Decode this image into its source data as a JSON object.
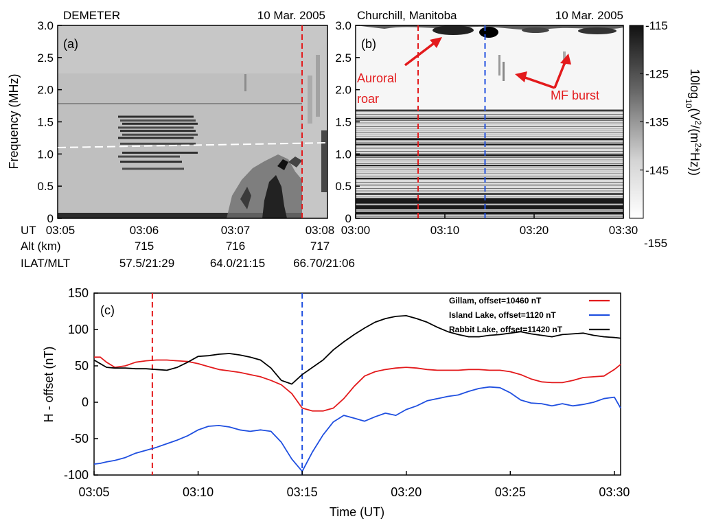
{
  "panel_a": {
    "instrument": "DEMETER",
    "date": "10 Mar. 2005",
    "letter": "(a)",
    "ylabel": "Frequency (MHz)",
    "yticks": [
      "0",
      "0.5",
      "1.0",
      "1.5",
      "2.0",
      "2.5",
      "3.0"
    ],
    "ytick_values": [
      0,
      0.5,
      1.0,
      1.5,
      2.0,
      2.5,
      3.0
    ],
    "ylim": [
      0,
      3.0
    ],
    "xlim_minutes": [
      3.083,
      3.133
    ],
    "rows": [
      {
        "label": "UT",
        "values": [
          "03:05",
          "03:06",
          "03:07",
          "03:08"
        ]
      },
      {
        "label": "Alt (km)",
        "values": [
          "715",
          "716",
          "717"
        ]
      },
      {
        "label": "ILAT/MLT",
        "values": [
          "57.5/21:29",
          "64.0/21:15",
          "66.70/21:06"
        ]
      }
    ],
    "marker_time": "03:07:50",
    "marker_color": "#e31a1c",
    "dashed_line_start_mhz": 1.1,
    "dashed_line_end_mhz": 1.17
  },
  "panel_b": {
    "location": "Churchill, Manitoba",
    "date": "10 Mar. 2005",
    "letter": "(b)",
    "yticks": [
      "0",
      "0.5",
      "1.0",
      "1.5",
      "2.0",
      "2.5",
      "3.0"
    ],
    "xticks": [
      "03:00",
      "03:10",
      "03:20",
      "03:30"
    ],
    "xtick_values_min": [
      0,
      10,
      20,
      30
    ],
    "xlim_min": [
      0,
      30
    ],
    "ylim": [
      0,
      3.0
    ],
    "red_marker_min": 7,
    "blue_marker_min": 14.5,
    "annotations": [
      {
        "text": "Auroral",
        "color": "#e31a1c"
      },
      {
        "text": "roar",
        "color": "#e31a1c"
      },
      {
        "text": "MF burst",
        "color": "#e31a1c"
      }
    ],
    "colorbar": {
      "label_base": "10log",
      "label_sub": "10",
      "label_mid": "(V",
      "label_sup": "2",
      "label_mid2": "/(m",
      "label_sup2": "2",
      "label_end": "*Hz))",
      "ticks": [
        "-115",
        "-125",
        "-135",
        "-145",
        "-155"
      ],
      "tick_values": [
        -115,
        -125,
        -135,
        -145,
        -155
      ],
      "range": [
        -155,
        -115
      ],
      "colormap": "gray-reversed"
    }
  },
  "chart_data": {
    "type": "line",
    "title": "",
    "panel_letter": "(c)",
    "xlabel": "Time (UT)",
    "ylabel": "H - offset (nT)",
    "xticks": [
      "03:05",
      "03:10",
      "03:15",
      "03:20",
      "03:25",
      "03:30"
    ],
    "xtick_values": [
      5,
      10,
      15,
      20,
      25,
      30
    ],
    "xlim": [
      5,
      30.3
    ],
    "yticks": [
      "-100",
      "-50",
      "0",
      "50",
      "100",
      "150"
    ],
    "ytick_values": [
      -100,
      -50,
      0,
      50,
      100,
      150
    ],
    "ylim": [
      -100,
      150
    ],
    "grid": false,
    "legend_position": "top-right",
    "markers": [
      {
        "x": 7.8,
        "color": "#e31a1c"
      },
      {
        "x": 15.0,
        "color": "#1f4fe0"
      }
    ],
    "x": [
      5.0,
      5.3,
      5.6,
      6.0,
      6.5,
      7.0,
      7.5,
      8.0,
      8.5,
      9.0,
      9.5,
      10.0,
      10.5,
      11.0,
      11.5,
      12.0,
      12.5,
      13.0,
      13.5,
      14.0,
      14.5,
      15.0,
      15.5,
      16.0,
      16.5,
      17.0,
      17.5,
      18.0,
      18.5,
      19.0,
      19.5,
      20.0,
      20.5,
      21.0,
      21.5,
      22.0,
      22.5,
      23.0,
      23.5,
      24.0,
      24.5,
      25.0,
      25.5,
      26.0,
      26.5,
      27.0,
      27.5,
      28.0,
      28.5,
      29.0,
      29.5,
      30.0,
      30.3
    ],
    "series": [
      {
        "name": "Gillam, offset=10460 nT",
        "color": "#e31a1c",
        "values": [
          62,
          62,
          55,
          48,
          50,
          55,
          57,
          58,
          58,
          57,
          56,
          53,
          49,
          45,
          43,
          41,
          38,
          35,
          30,
          24,
          12,
          -8,
          -12,
          -12,
          -8,
          5,
          22,
          36,
          42,
          45,
          47,
          48,
          47,
          45,
          44,
          44,
          44,
          45,
          45,
          44,
          44,
          42,
          38,
          32,
          28,
          27,
          27,
          30,
          34,
          35,
          36,
          45,
          52
        ]
      },
      {
        "name": "Island Lake, offset=1120 nT",
        "color": "#1f4fe0",
        "values": [
          -85,
          -84,
          -82,
          -80,
          -76,
          -70,
          -66,
          -62,
          -57,
          -52,
          -46,
          -38,
          -33,
          -32,
          -34,
          -38,
          -40,
          -38,
          -40,
          -55,
          -78,
          -95,
          -68,
          -45,
          -27,
          -18,
          -22,
          -26,
          -20,
          -15,
          -18,
          -10,
          -5,
          2,
          5,
          8,
          10,
          15,
          19,
          21,
          20,
          13,
          3,
          -1,
          -2,
          -5,
          -2,
          -5,
          -3,
          0,
          5,
          7,
          -8
        ]
      },
      {
        "name": "Rabbit Lake, offset=11420 nT",
        "color": "#000000",
        "values": [
          58,
          53,
          48,
          47,
          47,
          46,
          46,
          45,
          44,
          48,
          55,
          63,
          64,
          66,
          67,
          65,
          62,
          58,
          47,
          30,
          25,
          38,
          48,
          58,
          72,
          83,
          93,
          102,
          110,
          115,
          118,
          119,
          115,
          110,
          103,
          97,
          93,
          90,
          90,
          92,
          93,
          95,
          97,
          94,
          92,
          90,
          93,
          94,
          95,
          92,
          90,
          89,
          88
        ]
      }
    ]
  }
}
